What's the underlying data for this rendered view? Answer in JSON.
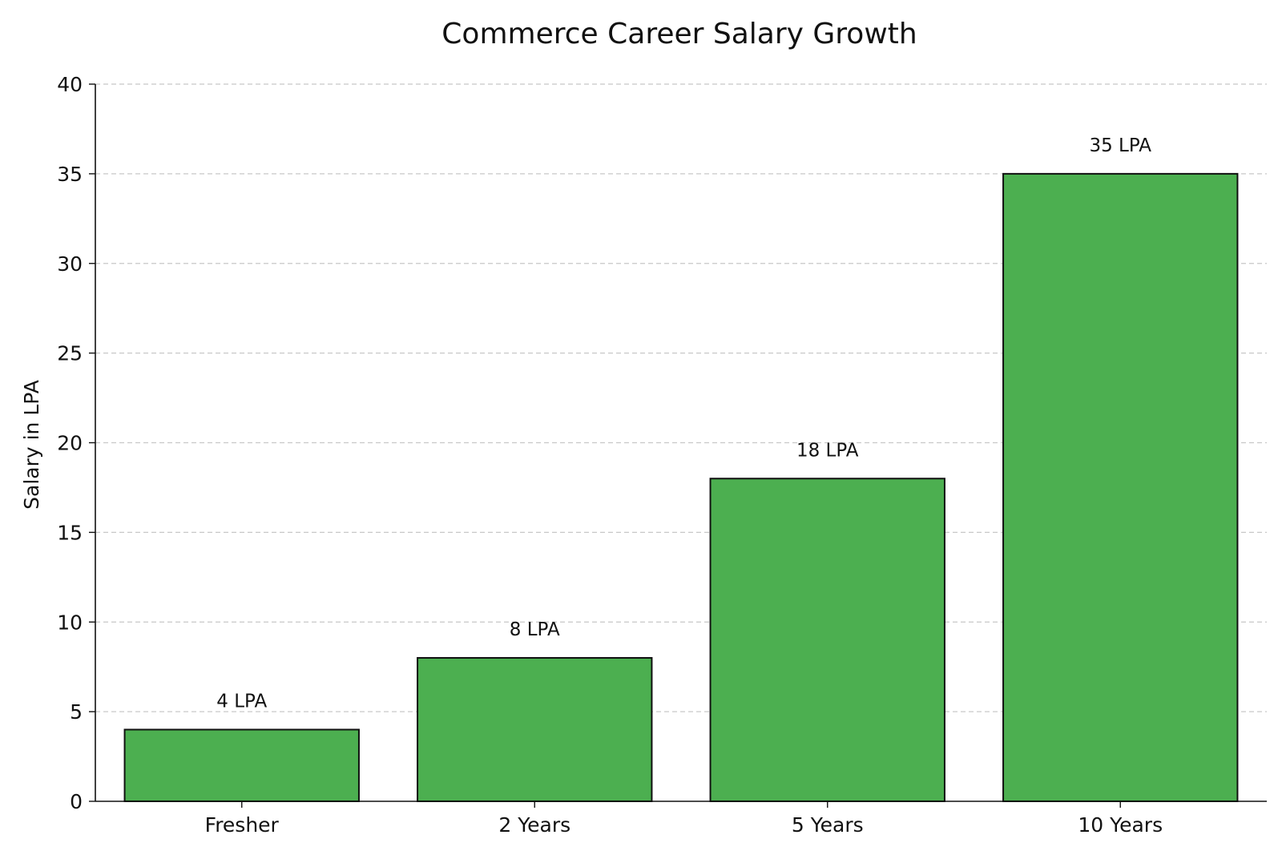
{
  "chart_data": {
    "type": "bar",
    "title": "Commerce Career Salary Growth",
    "xlabel": "",
    "ylabel": "Salary in LPA",
    "categories": [
      "Fresher",
      "2 Years",
      "5 Years",
      "10 Years"
    ],
    "values": [
      4,
      8,
      18,
      35
    ],
    "data_labels": [
      "4 LPA",
      "8 LPA",
      "18 LPA",
      "35 LPA"
    ],
    "ylim": [
      0,
      40
    ],
    "yticks": [
      0,
      5,
      10,
      15,
      20,
      25,
      30,
      35,
      40
    ],
    "grid": "horizontal-dashed",
    "bar_color": "#4caf50",
    "edge_color": "#111111"
  }
}
